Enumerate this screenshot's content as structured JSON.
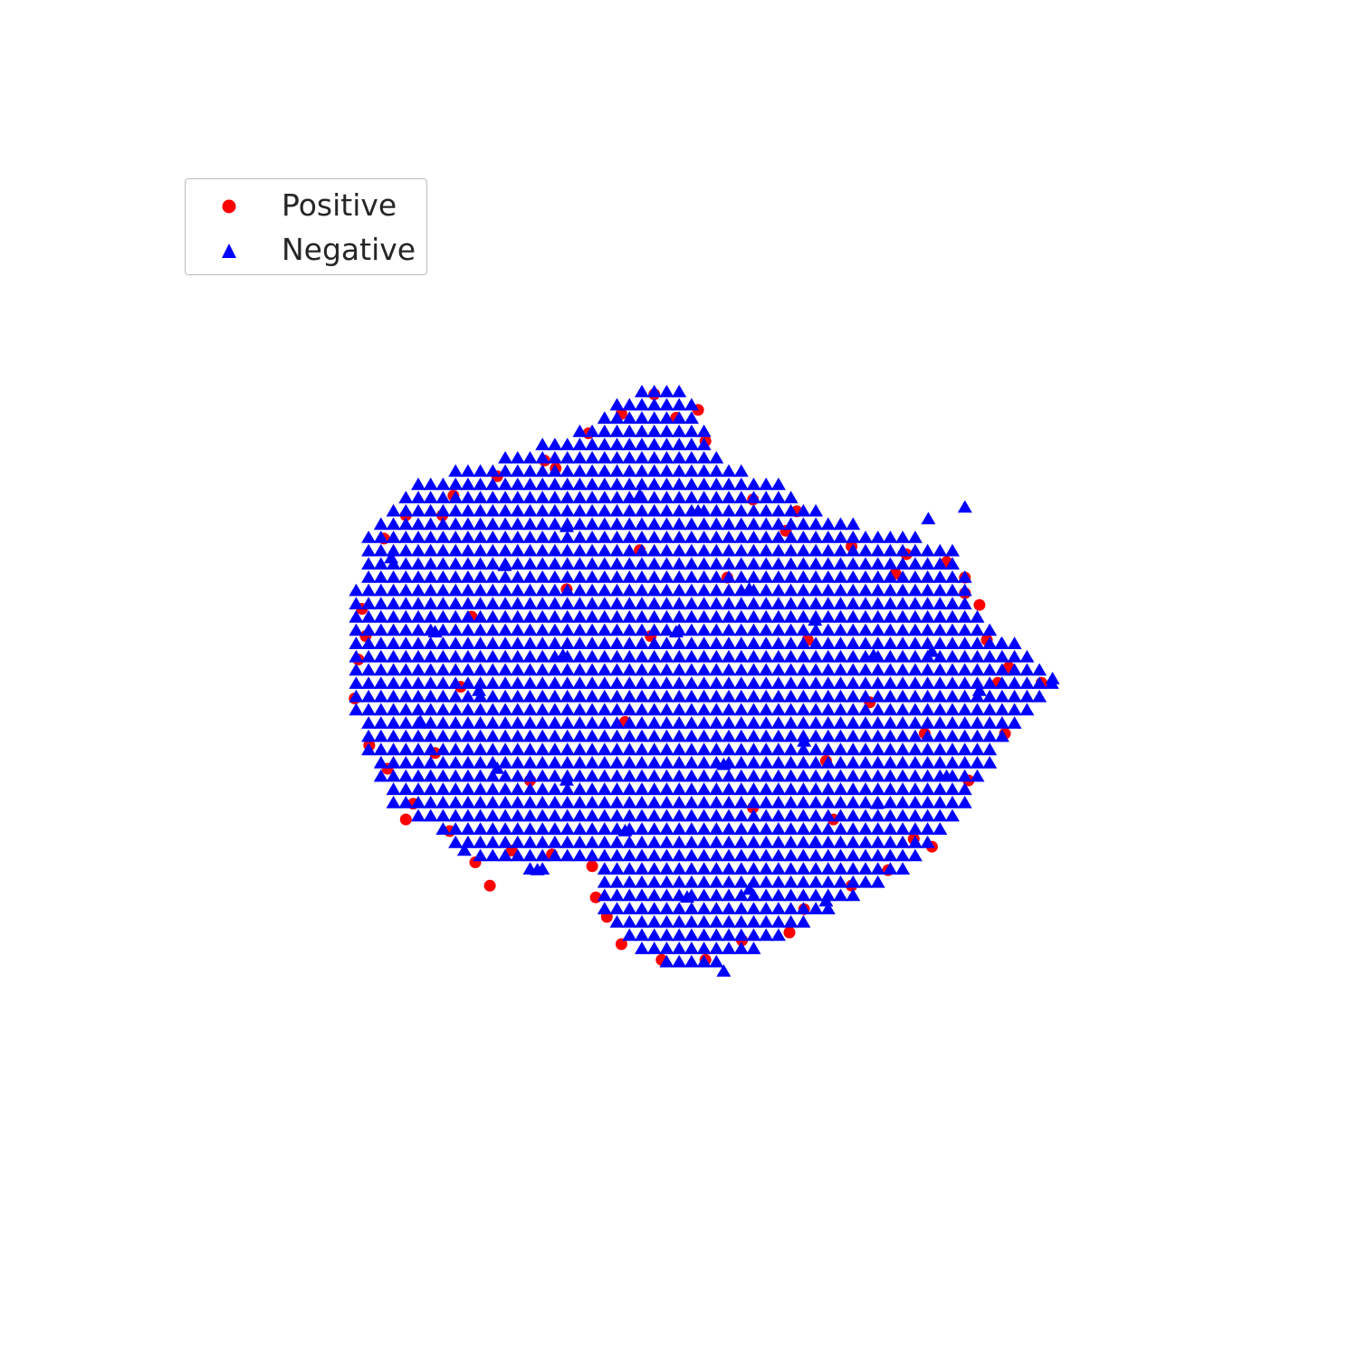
{
  "chart_data": {
    "type": "scatter",
    "title": "",
    "xlabel": "",
    "ylabel": "",
    "axes_visible": false,
    "grid": false,
    "legend_placement": "upper-left",
    "xlim": [
      -14,
      14
    ],
    "ylim": [
      -13,
      13
    ],
    "series": [
      {
        "name": "Positive",
        "color": "#ff0000",
        "marker": "circle",
        "points": [
          [
            -8.2,
            3.6
          ],
          [
            -7.6,
            4.2
          ],
          [
            -6.3,
            4.7
          ],
          [
            -5.1,
            5.2
          ],
          [
            -3.8,
            5.6
          ],
          [
            -2.6,
            6.3
          ],
          [
            -1.7,
            6.8
          ],
          [
            -0.8,
            7.3
          ],
          [
            -0.2,
            6.7
          ],
          [
            0.6,
            6.1
          ],
          [
            1.9,
            4.6
          ],
          [
            3.1,
            4.3
          ],
          [
            4.6,
            3.4
          ],
          [
            6.1,
            3.2
          ],
          [
            7.2,
            3.0
          ],
          [
            7.7,
            2.2
          ],
          [
            8.3,
            1.0
          ],
          [
            8.6,
            -0.1
          ],
          [
            8.9,
            0.3
          ],
          [
            9.8,
            -0.1
          ],
          [
            8.8,
            -1.4
          ],
          [
            7.8,
            -2.6
          ],
          [
            6.8,
            -4.3
          ],
          [
            5.6,
            -4.9
          ],
          [
            4.6,
            -5.3
          ],
          [
            3.3,
            -5.9
          ],
          [
            1.6,
            -6.7
          ],
          [
            0.6,
            -7.2
          ],
          [
            -0.6,
            -7.2
          ],
          [
            -1.7,
            -6.8
          ],
          [
            -2.4,
            -5.6
          ],
          [
            -2.5,
            -4.8
          ],
          [
            -3.6,
            -4.5
          ],
          [
            -4.7,
            -4.4
          ],
          [
            -5.7,
            -4.7
          ],
          [
            -6.4,
            -3.9
          ],
          [
            -7.4,
            -3.2
          ],
          [
            -8.1,
            -2.3
          ],
          [
            -8.6,
            -1.7
          ],
          [
            -9.0,
            -0.5
          ],
          [
            -8.9,
            0.5
          ],
          [
            -8.8,
            1.8
          ],
          [
            -5.8,
            1.6
          ],
          [
            -3.2,
            2.3
          ],
          [
            -1.2,
            3.3
          ],
          [
            1.2,
            2.6
          ],
          [
            3.4,
            1.0
          ],
          [
            5.1,
            -0.6
          ],
          [
            6.6,
            -1.4
          ],
          [
            -6.8,
            -1.9
          ],
          [
            -4.2,
            -2.6
          ],
          [
            -1.6,
            -1.1
          ],
          [
            1.9,
            -3.3
          ],
          [
            4.1,
            -3.6
          ],
          [
            -7.6,
            -3.6
          ],
          [
            -5.3,
            -5.3
          ],
          [
            -2.1,
            -6.1
          ],
          [
            2.9,
            -6.5
          ],
          [
            6.3,
            -4.1
          ],
          [
            8.1,
            1.9
          ],
          [
            7.7,
            2.6
          ],
          [
            -8.7,
            1.1
          ],
          [
            -6.6,
            4.2
          ],
          [
            0.4,
            6.9
          ],
          [
            2.8,
            3.8
          ],
          [
            5.8,
            2.7
          ],
          [
            -3.5,
            5.4
          ],
          [
            -0.9,
            1.1
          ],
          [
            3.9,
            -2.1
          ],
          [
            -6.1,
            -0.2
          ]
        ]
      },
      {
        "name": "Negative",
        "color": "#0000ff",
        "marker": "triangle"
      }
    ]
  }
}
